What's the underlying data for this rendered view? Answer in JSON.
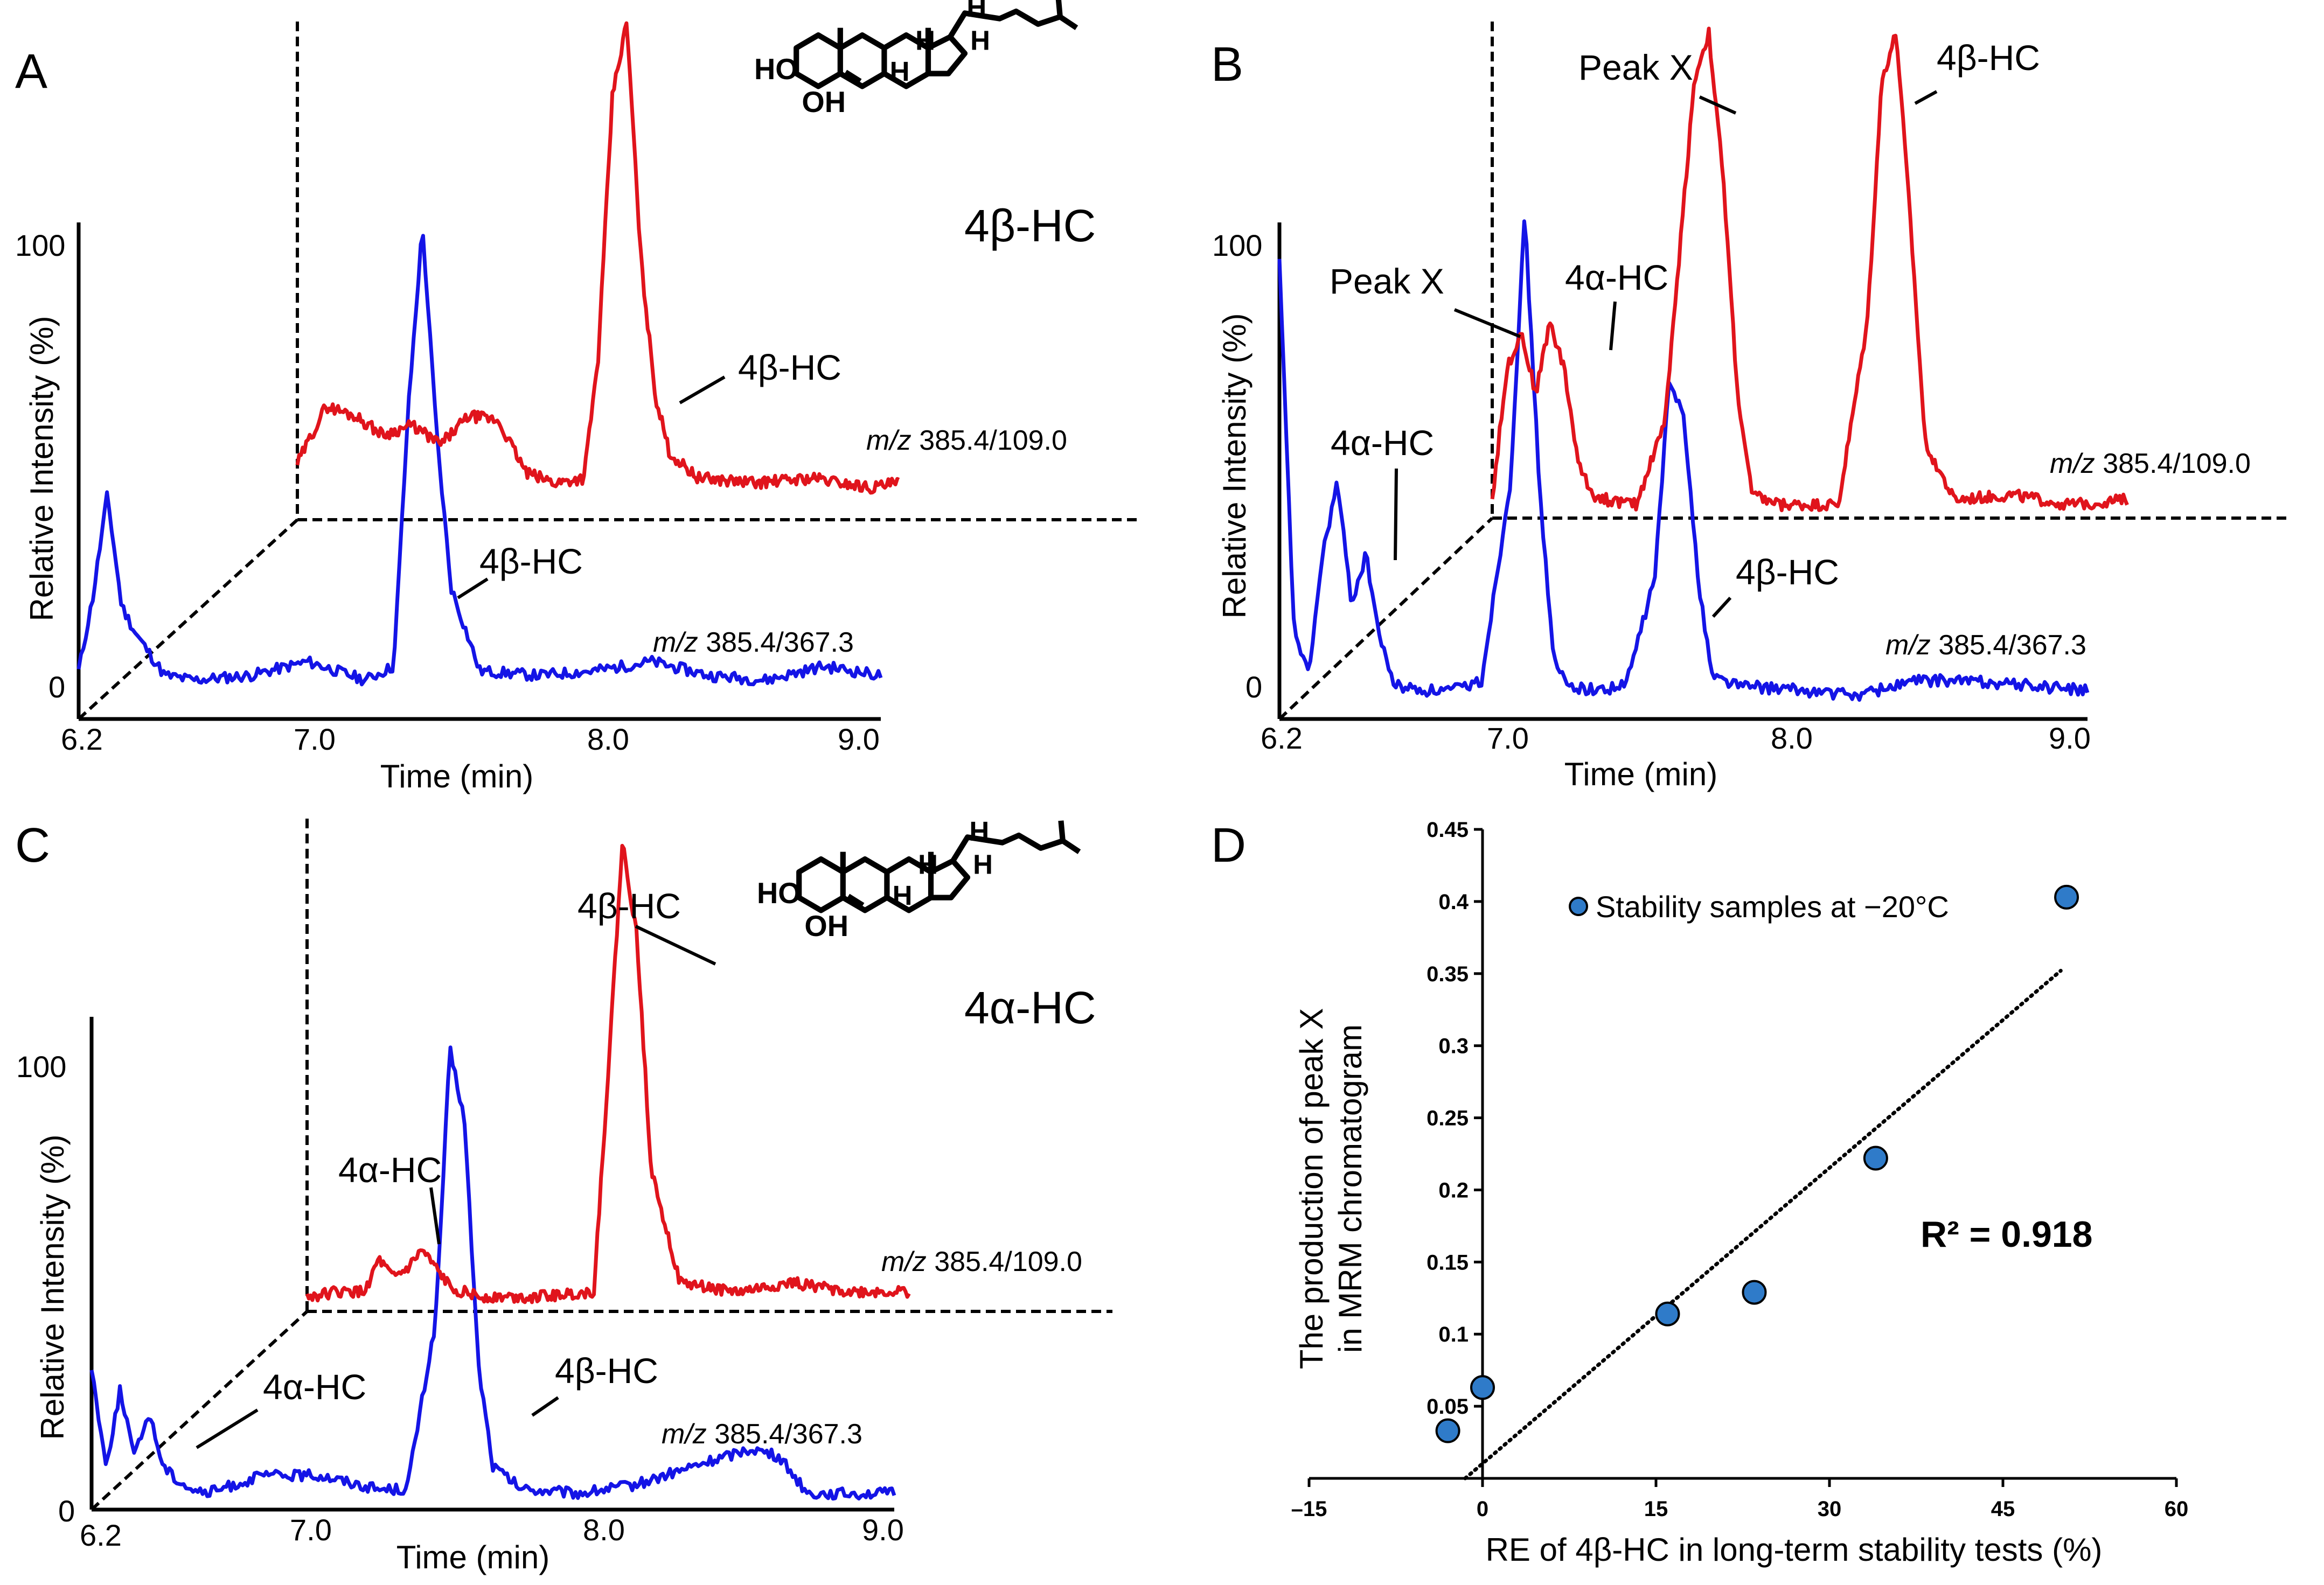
{
  "figure": {
    "panels": [
      {
        "letter": "A"
      },
      {
        "letter": "B"
      },
      {
        "letter": "C"
      },
      {
        "letter": "D"
      }
    ]
  },
  "chromatograms": {
    "x_ticks": [
      "6.2",
      "7.0",
      "8.0",
      "9.0"
    ],
    "y_ticks": [
      "100",
      "0"
    ],
    "xlabel": "Time (min)",
    "ylabel": "Relative Intensity (%)",
    "channel_prefix": "m/z",
    "channel_red": "385.4/109.0",
    "channel_blue": "385.4/367.3",
    "colors": {
      "red": "#e0141c",
      "blue": "#1414e6",
      "compound": "#8a36a8"
    }
  },
  "panel_a": {
    "compound": "4β-HC",
    "label_red": "4β-HC",
    "label_blue": "4β-HC"
  },
  "panel_b": {
    "label_peak_x_red": "Peak X",
    "label_4b_red": "4β-HC",
    "label_peak_x_blue": "Peak X",
    "label_4a_red": "4α-HC",
    "label_4a_blue": "4α-HC",
    "label_4b_blue": "4β-HC"
  },
  "panel_c": {
    "compound": "4α-HC",
    "label_4b_red": "4β-HC",
    "label_4a_red": "4α-HC",
    "label_4a_blue": "4α-HC",
    "label_4b_blue": "4β-HC"
  },
  "structure_atoms": {
    "ho": "HO",
    "oh": "OH",
    "h": "H"
  },
  "chart_data": [
    {
      "type": "line",
      "panel": "A",
      "xlabel": "Time (min)",
      "ylabel": "Relative Intensity (%)",
      "xlim": [
        6.2,
        9.0
      ],
      "ylim": [
        0,
        100
      ],
      "series": [
        {
          "name": "m/z 385.4/367.3",
          "color": "#1414e6",
          "x": [
            6.2,
            6.25,
            6.3,
            6.35,
            6.4,
            6.5,
            6.6,
            6.8,
            7.0,
            7.1,
            7.2,
            7.3,
            7.35,
            7.4,
            7.45,
            7.5,
            7.6,
            7.8,
            8.0,
            8.2,
            8.4,
            8.6,
            8.8,
            9.0
          ],
          "y": [
            4,
            20,
            42,
            18,
            12,
            3,
            2,
            3,
            6,
            4,
            2,
            5,
            60,
            100,
            55,
            22,
            4,
            3,
            4,
            6,
            3,
            2,
            5,
            3
          ]
        },
        {
          "name": "m/z 385.4/109.0",
          "color": "#e0141c",
          "x": [
            7.0,
            7.1,
            7.2,
            7.3,
            7.4,
            7.5,
            7.6,
            7.7,
            7.8,
            7.9,
            8.0,
            8.05,
            8.1,
            8.15,
            8.2,
            8.25,
            8.3,
            8.4,
            8.6,
            8.8,
            9.0,
            9.1
          ],
          "y": [
            8,
            20,
            18,
            14,
            16,
            12,
            18,
            17,
            6,
            4,
            5,
            30,
            85,
            100,
            50,
            22,
            10,
            5,
            4,
            5,
            3,
            4
          ]
        }
      ]
    },
    {
      "type": "line",
      "panel": "B",
      "xlabel": "Time (min)",
      "ylabel": "Relative Intensity (%)",
      "xlim": [
        6.2,
        9.0
      ],
      "ylim": [
        0,
        100
      ],
      "series": [
        {
          "name": "m/z 385.4/367.3",
          "color": "#1414e6",
          "x": [
            6.2,
            6.25,
            6.3,
            6.35,
            6.4,
            6.45,
            6.5,
            6.55,
            6.6,
            6.7,
            6.8,
            6.9,
            7.0,
            7.05,
            7.1,
            7.15,
            7.2,
            7.3,
            7.4,
            7.5,
            7.55,
            7.6,
            7.65,
            7.7,
            7.8,
            8.0,
            8.2,
            8.4,
            8.6,
            8.8,
            9.0
          ],
          "y": [
            90,
            15,
            5,
            30,
            45,
            20,
            30,
            12,
            3,
            2,
            2,
            4,
            45,
            100,
            45,
            8,
            3,
            2,
            3,
            25,
            65,
            60,
            25,
            5,
            3,
            2,
            1,
            4,
            4,
            3,
            2
          ]
        },
        {
          "name": "m/z 385.4/109.0",
          "color": "#e0141c",
          "x": [
            7.0,
            7.05,
            7.1,
            7.15,
            7.2,
            7.25,
            7.3,
            7.35,
            7.4,
            7.5,
            7.6,
            7.7,
            7.75,
            7.8,
            7.85,
            7.9,
            8.0,
            8.2,
            8.3,
            8.35,
            8.4,
            8.45,
            8.5,
            8.6,
            8.8,
            9.0,
            9.2
          ],
          "y": [
            3,
            30,
            38,
            25,
            40,
            30,
            10,
            4,
            3,
            2,
            20,
            90,
            100,
            70,
            25,
            4,
            2,
            2,
            40,
            90,
            100,
            60,
            15,
            3,
            4,
            2,
            3
          ]
        }
      ]
    },
    {
      "type": "line",
      "panel": "C",
      "xlabel": "Time (min)",
      "ylabel": "Relative Intensity (%)",
      "xlim": [
        6.2,
        9.0
      ],
      "ylim": [
        0,
        100
      ],
      "series": [
        {
          "name": "m/z 385.4/367.3",
          "color": "#1414e6",
          "x": [
            6.2,
            6.25,
            6.3,
            6.35,
            6.4,
            6.45,
            6.5,
            6.55,
            6.6,
            6.8,
            7.0,
            7.2,
            7.3,
            7.4,
            7.45,
            7.5,
            7.55,
            7.6,
            7.7,
            7.9,
            8.1,
            8.3,
            8.5,
            8.6,
            8.7,
            9.0
          ],
          "y": [
            30,
            8,
            25,
            10,
            20,
            8,
            5,
            3,
            2,
            6,
            6,
            3,
            3,
            40,
            100,
            85,
            30,
            8,
            3,
            2,
            4,
            8,
            12,
            10,
            2,
            2
          ]
        },
        {
          "name": "m/z 385.4/109.0",
          "color": "#e0141c",
          "x": [
            7.0,
            7.1,
            7.2,
            7.25,
            7.3,
            7.35,
            7.4,
            7.5,
            7.6,
            7.8,
            8.0,
            8.05,
            8.1,
            8.15,
            8.2,
            8.3,
            8.5,
            8.7,
            8.9,
            9.1
          ],
          "y": [
            2,
            3,
            3,
            10,
            6,
            8,
            12,
            4,
            2,
            2,
            3,
            50,
            100,
            80,
            30,
            5,
            3,
            5,
            3,
            3
          ]
        }
      ]
    },
    {
      "type": "scatter",
      "panel": "D",
      "xlabel": "RE of 4β-HC in long-term stability tests (%)",
      "ylabel_line1": "The production of peak X",
      "ylabel_line2": "in MRM chromatogram",
      "xlim": [
        -15,
        60
      ],
      "ylim": [
        0,
        0.45
      ],
      "x_ticks": [
        "–15",
        "0",
        "15",
        "30",
        "45",
        "60"
      ],
      "y_ticks": [
        "0.05",
        "0.1",
        "0.15",
        "0.2",
        "0.25",
        "0.3",
        "0.35",
        "0.4",
        "0.45"
      ],
      "legend": "Stability samples at −20°C",
      "legend_position": "top-left",
      "annotation": "R² = 0.918",
      "trendline": {
        "style": "dotted",
        "x": [
          -1.5,
          50
        ],
        "y": [
          0.0,
          0.352
        ]
      },
      "series": [
        {
          "name": "Stability samples at −20°C",
          "color": "#2f7bc9",
          "x": [
            -3,
            0,
            16,
            23.5,
            34,
            50.5
          ],
          "y": [
            0.033,
            0.063,
            0.114,
            0.129,
            0.222,
            0.403
          ]
        }
      ]
    }
  ]
}
